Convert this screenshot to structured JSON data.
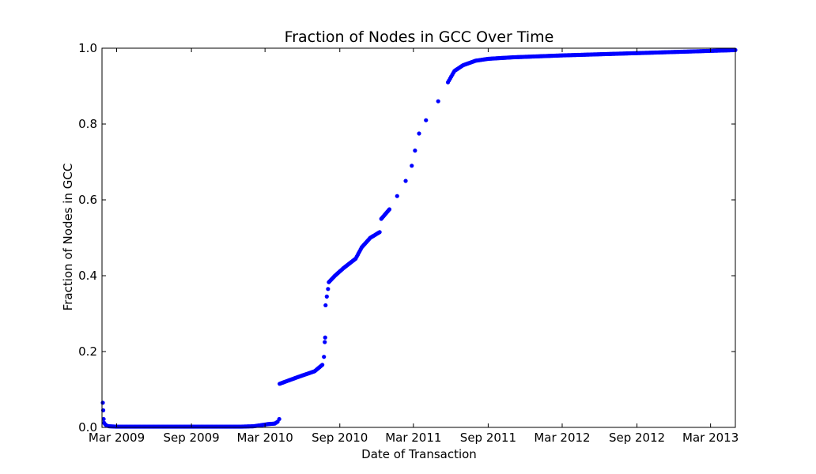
{
  "chart_data": {
    "type": "scatter",
    "title": "Fraction of Nodes in GCC Over Time",
    "xlabel": "Date of Transaction",
    "ylabel": "Fraction of Nodes in GCC",
    "xlim": [
      "2009-01-24",
      "2013-05-01"
    ],
    "ylim": [
      0,
      1.0
    ],
    "xticks": [
      {
        "date": "2009-03-01",
        "label": "Mar 2009"
      },
      {
        "date": "2009-09-01",
        "label": "Sep 2009"
      },
      {
        "date": "2010-03-01",
        "label": "Mar 2010"
      },
      {
        "date": "2010-09-01",
        "label": "Sep 2010"
      },
      {
        "date": "2011-03-01",
        "label": "Mar 2011"
      },
      {
        "date": "2011-09-01",
        "label": "Sep 2011"
      },
      {
        "date": "2012-03-01",
        "label": "Mar 2012"
      },
      {
        "date": "2012-09-01",
        "label": "Sep 2012"
      },
      {
        "date": "2013-03-01",
        "label": "Mar 2013"
      }
    ],
    "yticks": [
      "0.0",
      "0.2",
      "0.4",
      "0.6",
      "0.8",
      "1.0"
    ],
    "grid": false,
    "marker_color": "#0000ff",
    "series": [
      {
        "points": [
          [
            "2009-01-26",
            0.065
          ],
          [
            "2009-01-27",
            0.045
          ],
          [
            "2009-01-28",
            0.022
          ],
          [
            "2009-01-29",
            0.012
          ],
          [
            "2009-02-01",
            0.008
          ],
          [
            "2009-02-04",
            0.005
          ],
          [
            "2009-02-10",
            0.003
          ],
          [
            "2009-03-01",
            0.002
          ],
          [
            "2009-05-01",
            0.002
          ],
          [
            "2009-07-01",
            0.002
          ],
          [
            "2009-09-01",
            0.002
          ],
          [
            "2009-11-01",
            0.002
          ],
          [
            "2010-01-01",
            0.002
          ],
          [
            "2010-02-01",
            0.003
          ],
          [
            "2010-02-20",
            0.006
          ],
          [
            "2010-03-10",
            0.009
          ],
          [
            "2010-03-25",
            0.01
          ],
          [
            "2010-04-01",
            0.015
          ],
          [
            "2010-04-05",
            0.022
          ],
          [
            "2010-04-06",
            0.115
          ],
          [
            "2010-05-01",
            0.125
          ],
          [
            "2010-06-01",
            0.137
          ],
          [
            "2010-07-01",
            0.148
          ],
          [
            "2010-07-20",
            0.165
          ],
          [
            "2010-07-24",
            0.186
          ],
          [
            "2010-07-26",
            0.225
          ],
          [
            "2010-07-27",
            0.237
          ],
          [
            "2010-07-28",
            0.322
          ],
          [
            "2010-07-31",
            0.345
          ],
          [
            "2010-08-03",
            0.365
          ],
          [
            "2010-08-05",
            0.383
          ],
          [
            "2010-08-20",
            0.4
          ],
          [
            "2010-09-10",
            0.42
          ],
          [
            "2010-10-10",
            0.445
          ],
          [
            "2010-10-25",
            0.475
          ],
          [
            "2010-11-15",
            0.5
          ],
          [
            "2010-12-08",
            0.515
          ],
          [
            "2010-12-12",
            0.55
          ],
          [
            "2011-01-01",
            0.575
          ],
          [
            "2011-01-20",
            0.61
          ],
          [
            "2011-02-10",
            0.65
          ],
          [
            "2011-02-25",
            0.69
          ],
          [
            "2011-03-05",
            0.73
          ],
          [
            "2011-03-15",
            0.775
          ],
          [
            "2011-04-01",
            0.81
          ],
          [
            "2011-05-01",
            0.86
          ],
          [
            "2011-05-25",
            0.91
          ],
          [
            "2011-06-10",
            0.94
          ],
          [
            "2011-07-01",
            0.955
          ],
          [
            "2011-08-01",
            0.967
          ],
          [
            "2011-09-01",
            0.972
          ],
          [
            "2011-11-01",
            0.976
          ],
          [
            "2012-03-01",
            0.981
          ],
          [
            "2012-09-01",
            0.987
          ],
          [
            "2013-03-01",
            0.993
          ],
          [
            "2013-05-01",
            0.995
          ]
        ]
      }
    ]
  }
}
